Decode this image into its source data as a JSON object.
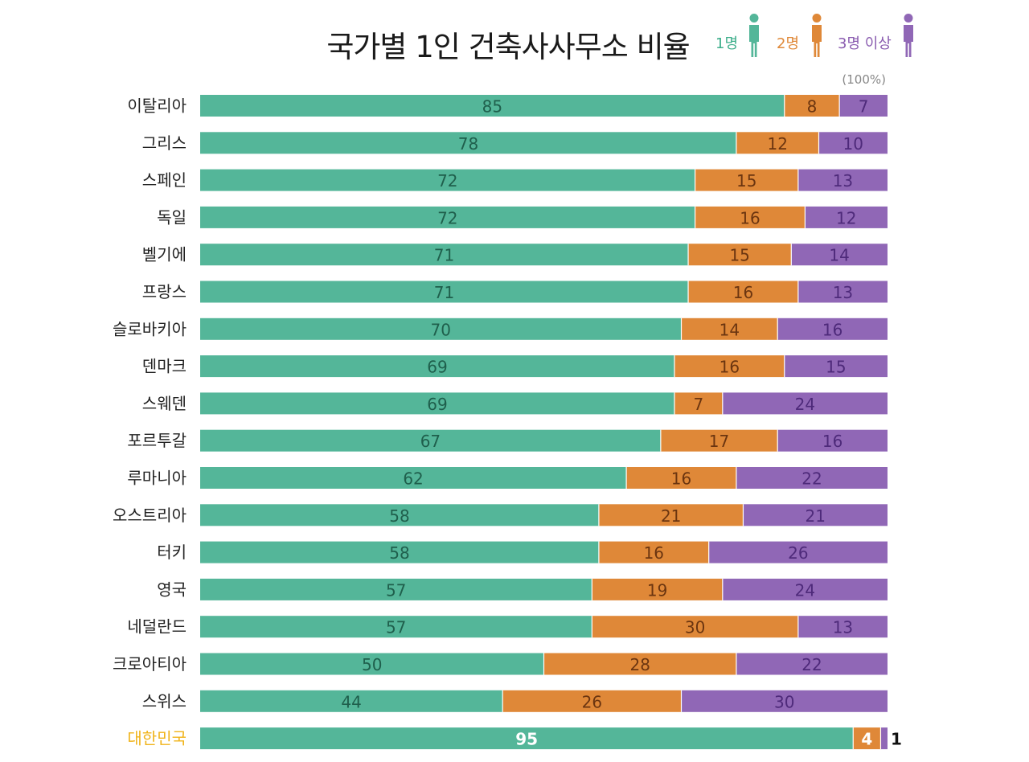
{
  "chart_data": {
    "type": "bar",
    "orientation": "horizontal",
    "stacked": true,
    "title": "국가별 1인 건축사사무소 비율",
    "total_note": "(100%)",
    "categories": [
      "이탈리아",
      "그리스",
      "스페인",
      "독일",
      "벨기에",
      "프랑스",
      "슬로바키아",
      "덴마크",
      "스웨덴",
      "포르투갈",
      "루마니아",
      "오스트리아",
      "터키",
      "영국",
      "네덜란드",
      "크로아티아",
      "스위스",
      "대한민국"
    ],
    "highlight_category": "대한민국",
    "series": [
      {
        "name": "1명",
        "color": "#54b699",
        "label_color": "#1f5f4c",
        "values": [
          85,
          78,
          72,
          72,
          71,
          71,
          70,
          69,
          69,
          67,
          62,
          58,
          58,
          57,
          57,
          50,
          44,
          95
        ]
      },
      {
        "name": "2명",
        "color": "#df8838",
        "label_color": "#6b3510",
        "values": [
          8,
          12,
          15,
          16,
          15,
          16,
          14,
          16,
          7,
          17,
          16,
          21,
          16,
          19,
          30,
          28,
          26,
          4
        ]
      },
      {
        "name": "3명 이상",
        "color": "#9067b6",
        "label_color": "#4e2a7a",
        "values": [
          7,
          10,
          13,
          12,
          14,
          13,
          16,
          15,
          24,
          16,
          22,
          21,
          26,
          24,
          13,
          22,
          30,
          1
        ]
      }
    ],
    "xlim": [
      0,
      100
    ]
  },
  "colors": {
    "highlight": "#f0b41c",
    "category_label": "#222222"
  }
}
